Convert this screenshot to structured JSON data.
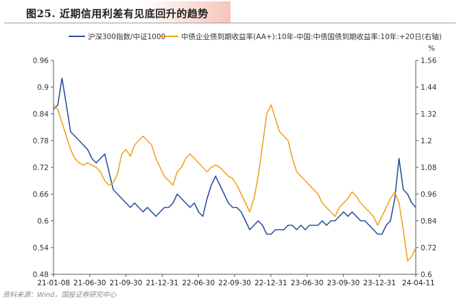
{
  "page": {
    "title": "图25. 近期信用利差有见底回升的趋势",
    "source_note": "资料来源：Wind，国投证券研究中心"
  },
  "chart_data": {
    "type": "line",
    "legend_position": "top",
    "right_axis_unit": "%",
    "colors": {
      "left": "#2a4d9c",
      "right": "#f0a21e"
    },
    "left_axis": {
      "ylim": [
        0.48,
        0.96
      ],
      "ticks": [
        "0.96",
        "0.9",
        "0.84",
        "0.78",
        "0.72",
        "0.66",
        "0.6",
        "0.54",
        "0.48"
      ]
    },
    "right_axis": {
      "ylim": [
        0.6,
        1.56
      ],
      "ticks": [
        "1.56",
        "1.44",
        "1.32",
        "1.2",
        "1.08",
        "0.96",
        "0.84",
        "0.72",
        "0.6"
      ]
    },
    "x_ticks": [
      "21-01-08",
      "21-06-30",
      "21-09-30",
      "21-12-31",
      "22-06-30",
      "22-09-30",
      "22-12-31",
      "23-06-30",
      "23-09-30",
      "23-12-31",
      "24-04-11"
    ],
    "x_range": [
      "2021-01-08",
      "2024-04-11"
    ],
    "series": [
      {
        "name": "沪深300指数/中证1000",
        "axis": "left",
        "x": [
          "2021-01-08",
          "2021-01-22",
          "2021-02-05",
          "2021-02-19",
          "2021-03-05",
          "2021-03-19",
          "2021-04-02",
          "2021-04-16",
          "2021-04-30",
          "2021-05-14",
          "2021-05-28",
          "2021-06-11",
          "2021-06-25",
          "2021-07-09",
          "2021-07-23",
          "2021-08-06",
          "2021-08-20",
          "2021-09-03",
          "2021-09-17",
          "2021-10-01",
          "2021-10-15",
          "2021-10-29",
          "2021-11-12",
          "2021-11-26",
          "2021-12-10",
          "2021-12-24",
          "2022-01-07",
          "2022-01-21",
          "2022-02-04",
          "2022-02-18",
          "2022-03-04",
          "2022-03-18",
          "2022-04-01",
          "2022-04-15",
          "2022-04-29",
          "2022-05-13",
          "2022-05-27",
          "2022-06-10",
          "2022-06-24",
          "2022-07-08",
          "2022-07-22",
          "2022-08-05",
          "2022-08-19",
          "2022-09-02",
          "2022-09-16",
          "2022-09-30",
          "2022-10-14",
          "2022-10-28",
          "2022-11-11",
          "2022-11-25",
          "2022-12-09",
          "2022-12-23",
          "2023-01-06",
          "2023-01-20",
          "2023-02-03",
          "2023-02-17",
          "2023-03-03",
          "2023-03-17",
          "2023-03-31",
          "2023-04-14",
          "2023-04-28",
          "2023-05-12",
          "2023-05-26",
          "2023-06-09",
          "2023-06-23",
          "2023-07-07",
          "2023-07-21",
          "2023-08-04",
          "2023-08-18",
          "2023-09-01",
          "2023-09-15",
          "2023-09-29",
          "2023-10-13",
          "2023-10-27",
          "2023-11-10",
          "2023-11-24",
          "2023-12-08",
          "2023-12-22",
          "2024-01-05",
          "2024-01-19",
          "2024-02-02",
          "2024-02-16",
          "2024-03-01",
          "2024-03-15",
          "2024-03-29",
          "2024-04-11"
        ],
        "values": [
          0.85,
          0.86,
          0.92,
          0.86,
          0.8,
          0.79,
          0.78,
          0.77,
          0.76,
          0.74,
          0.73,
          0.74,
          0.75,
          0.71,
          0.67,
          0.66,
          0.65,
          0.64,
          0.63,
          0.64,
          0.63,
          0.62,
          0.63,
          0.62,
          0.61,
          0.62,
          0.63,
          0.63,
          0.64,
          0.66,
          0.65,
          0.64,
          0.63,
          0.64,
          0.62,
          0.61,
          0.65,
          0.68,
          0.7,
          0.68,
          0.66,
          0.64,
          0.63,
          0.63,
          0.62,
          0.6,
          0.58,
          0.59,
          0.6,
          0.59,
          0.57,
          0.57,
          0.58,
          0.58,
          0.58,
          0.59,
          0.59,
          0.58,
          0.59,
          0.58,
          0.59,
          0.59,
          0.59,
          0.6,
          0.59,
          0.6,
          0.6,
          0.61,
          0.62,
          0.61,
          0.62,
          0.61,
          0.6,
          0.6,
          0.59,
          0.58,
          0.57,
          0.57,
          0.59,
          0.6,
          0.65,
          0.74,
          0.67,
          0.66,
          0.64,
          0.63
        ]
      },
      {
        "name": "中债企业债到期收益率(AA+):10年-中国:中债国债到期收益率:10年:+20日(右轴)",
        "axis": "right",
        "x": [
          "2021-01-08",
          "2021-01-22",
          "2021-02-05",
          "2021-02-19",
          "2021-03-05",
          "2021-03-19",
          "2021-04-02",
          "2021-04-16",
          "2021-04-30",
          "2021-05-14",
          "2021-05-28",
          "2021-06-11",
          "2021-06-25",
          "2021-07-09",
          "2021-07-23",
          "2021-08-06",
          "2021-08-20",
          "2021-09-03",
          "2021-09-17",
          "2021-10-01",
          "2021-10-15",
          "2021-10-29",
          "2021-11-12",
          "2021-11-26",
          "2021-12-10",
          "2021-12-24",
          "2022-01-07",
          "2022-01-21",
          "2022-02-04",
          "2022-02-18",
          "2022-03-04",
          "2022-03-18",
          "2022-04-01",
          "2022-04-15",
          "2022-04-29",
          "2022-05-13",
          "2022-05-27",
          "2022-06-10",
          "2022-06-24",
          "2022-07-08",
          "2022-07-22",
          "2022-08-05",
          "2022-08-19",
          "2022-09-02",
          "2022-09-16",
          "2022-09-30",
          "2022-10-14",
          "2022-10-28",
          "2022-11-11",
          "2022-11-25",
          "2022-12-09",
          "2022-12-23",
          "2023-01-06",
          "2023-01-20",
          "2023-02-03",
          "2023-02-17",
          "2023-03-03",
          "2023-03-17",
          "2023-03-31",
          "2023-04-14",
          "2023-04-28",
          "2023-05-12",
          "2023-05-26",
          "2023-06-09",
          "2023-06-23",
          "2023-07-07",
          "2023-07-21",
          "2023-08-04",
          "2023-08-18",
          "2023-09-01",
          "2023-09-15",
          "2023-09-29",
          "2023-10-13",
          "2023-10-27",
          "2023-11-10",
          "2023-11-24",
          "2023-12-08",
          "2023-12-22",
          "2024-01-05",
          "2024-01-19",
          "2024-02-02",
          "2024-02-16",
          "2024-03-01",
          "2024-03-15",
          "2024-03-29",
          "2024-04-11"
        ],
        "values": [
          1.36,
          1.34,
          1.28,
          1.22,
          1.16,
          1.12,
          1.1,
          1.09,
          1.1,
          1.09,
          1.08,
          1.06,
          1.02,
          1.0,
          1.01,
          1.05,
          1.14,
          1.16,
          1.13,
          1.18,
          1.2,
          1.22,
          1.2,
          1.18,
          1.12,
          1.08,
          1.04,
          1.02,
          1.0,
          1.06,
          1.08,
          1.12,
          1.14,
          1.12,
          1.1,
          1.08,
          1.06,
          1.08,
          1.09,
          1.08,
          1.06,
          1.04,
          1.03,
          1.0,
          0.96,
          0.92,
          0.88,
          0.94,
          1.04,
          1.18,
          1.32,
          1.36,
          1.3,
          1.24,
          1.22,
          1.2,
          1.12,
          1.06,
          1.04,
          1.02,
          1.0,
          0.98,
          0.96,
          0.92,
          0.9,
          0.88,
          0.86,
          0.9,
          0.92,
          0.94,
          0.97,
          0.95,
          0.92,
          0.9,
          0.88,
          0.86,
          0.82,
          0.86,
          0.9,
          0.94,
          0.97,
          0.92,
          0.8,
          0.66,
          0.68,
          0.72
        ]
      }
    ]
  }
}
